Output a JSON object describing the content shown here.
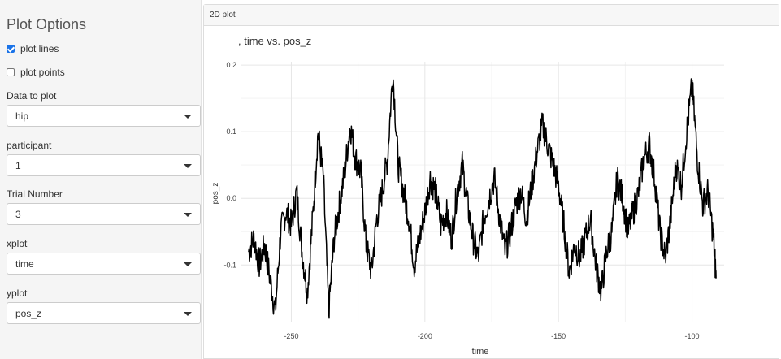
{
  "sidebar": {
    "title": "Plot Options",
    "plot_lines": {
      "label": "plot lines",
      "checked": true
    },
    "plot_points": {
      "label": "plot points",
      "checked": false
    },
    "data_to_plot": {
      "label": "Data to plot",
      "value": "hip"
    },
    "participant": {
      "label": "participant",
      "value": "1"
    },
    "trial_number": {
      "label": "Trial Number",
      "value": "3"
    },
    "xplot": {
      "label": "xplot",
      "value": "time"
    },
    "yplot": {
      "label": "yplot",
      "value": "pos_z"
    }
  },
  "panel": {
    "header": "2D plot"
  },
  "chart_data": {
    "type": "line",
    "title": ", time vs. pos_z",
    "xlabel": "time",
    "ylabel": "pos_z",
    "xlim": [
      -269,
      -88
    ],
    "ylim": [
      -0.185,
      0.205
    ],
    "xticks": [
      -250,
      -200,
      -150,
      -100
    ],
    "xtick_labels": [
      "-250",
      "-200",
      "-150",
      "-100"
    ],
    "yticks": [
      -0.1,
      0.0,
      0.1,
      0.2
    ],
    "ytick_labels": [
      "-0.1",
      "0.0",
      "0.1",
      "0.2"
    ],
    "grid": true,
    "line_color": "#000000",
    "series": [
      {
        "x": [
          -266,
          -264,
          -262,
          -260,
          -258,
          -256,
          -254,
          -252,
          -250,
          -248,
          -246,
          -244,
          -242,
          -240,
          -238,
          -236,
          -234,
          -232,
          -230,
          -228,
          -226,
          -224,
          -222,
          -220,
          -218,
          -216,
          -214,
          -212,
          -210,
          -208,
          -206,
          -204,
          -202,
          -200,
          -198,
          -196,
          -194,
          -192,
          -190,
          -188,
          -186,
          -184,
          -182,
          -180,
          -178,
          -176,
          -174,
          -172,
          -170,
          -168,
          -166,
          -164,
          -162,
          -160,
          -158,
          -156,
          -154,
          -152,
          -150,
          -148,
          -146,
          -144,
          -142,
          -140,
          -138,
          -136,
          -134,
          -132,
          -130,
          -128,
          -126,
          -124,
          -122,
          -120,
          -118,
          -116,
          -114,
          -112,
          -110,
          -108,
          -106,
          -104,
          -102,
          -100,
          -98,
          -96,
          -94,
          -92,
          -91
        ],
        "y": [
          -0.08,
          -0.06,
          -0.1,
          -0.07,
          -0.12,
          -0.17,
          -0.05,
          -0.02,
          -0.04,
          0.01,
          -0.08,
          -0.14,
          -0.03,
          0.1,
          0.03,
          -0.17,
          -0.06,
          -0.01,
          0.04,
          0.11,
          0.06,
          0.04,
          -0.07,
          -0.11,
          -0.03,
          0.01,
          0.06,
          0.19,
          0.05,
          0.01,
          -0.03,
          -0.1,
          -0.06,
          -0.02,
          0.03,
          0.01,
          -0.04,
          -0.02,
          -0.06,
          0.01,
          0.05,
          -0.01,
          -0.06,
          -0.09,
          -0.03,
          0.0,
          0.03,
          -0.03,
          -0.08,
          -0.05,
          -0.01,
          0.01,
          -0.03,
          0.02,
          0.07,
          0.11,
          0.08,
          0.05,
          0.02,
          -0.04,
          -0.11,
          -0.07,
          -0.09,
          -0.06,
          -0.03,
          -0.1,
          -0.14,
          -0.08,
          -0.05,
          0.03,
          0.0,
          -0.05,
          -0.02,
          0.01,
          0.06,
          0.08,
          0.03,
          -0.05,
          -0.09,
          -0.03,
          0.05,
          0.02,
          0.1,
          0.17,
          0.06,
          -0.01,
          0.01,
          -0.06,
          -0.12
        ]
      }
    ]
  }
}
